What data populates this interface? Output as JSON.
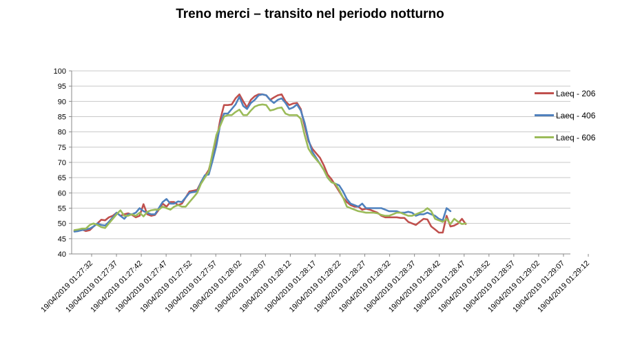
{
  "chart_data": {
    "type": "line",
    "title": "Treno merci – transito nel periodo notturno",
    "xlabel": "",
    "ylabel": "",
    "ylim": [
      40,
      100
    ],
    "yticks": [
      40,
      45,
      50,
      55,
      60,
      65,
      70,
      75,
      80,
      85,
      90,
      95,
      100
    ],
    "grid": true,
    "legend_position": "right",
    "x_labels": [
      "19/04/2019 01:27:32",
      "19/04/2019 01:27:37",
      "19/04/2019 01:27:42",
      "19/04/2019 01:27:47",
      "19/04/2019 01:27:52",
      "19/04/2019 01:27:57",
      "19/04/2019 01:28:02",
      "19/04/2019 01:28:07",
      "19/04/2019 01:28:12",
      "19/04/2019 01:28:17",
      "19/04/2019 01:28:22",
      "19/04/2019 01:28:27",
      "19/04/2019 01:28:32",
      "19/04/2019 01:28:37",
      "19/04/2019 01:28:42",
      "19/04/2019 01:28:47",
      "19/04/2019 01:28:52",
      "19/04/2019 01:28:57",
      "19/04/2019 01:29:02",
      "19/04/2019 01:29:07",
      "19/04/2019 01:29:12"
    ],
    "series": [
      {
        "name": "Laeq - 206",
        "color": "#c0504d",
        "values": [
          47.5,
          47.8,
          48.0,
          47.5,
          47.8,
          49.0,
          50.0,
          51.2,
          51.0,
          52.0,
          52.5,
          53.5,
          52.5,
          53.0,
          53.3,
          52.8,
          52.0,
          52.5,
          56.3,
          53.0,
          52.5,
          52.8,
          54.5,
          56.5,
          55.5,
          57.0,
          57.0,
          56.0,
          56.5,
          58.5,
          60.5,
          60.7,
          61.0,
          63.5,
          65.5,
          67.5,
          72.0,
          77.0,
          84.0,
          88.8,
          88.8,
          89.0,
          91.0,
          92.3,
          90.0,
          88.0,
          90.5,
          91.7,
          92.3,
          92.3,
          92.0,
          90.5,
          91.3,
          92.0,
          92.3,
          90.0,
          88.8,
          89.3,
          89.5,
          87.5,
          82.0,
          77.0,
          74.5,
          73.0,
          71.5,
          69.0,
          66.0,
          64.5,
          62.5,
          60.5,
          58.5,
          57.0,
          56.0,
          55.5,
          55.5,
          54.5,
          54.8,
          54.5,
          54.0,
          53.5,
          52.5,
          52.0,
          52.0,
          52.0,
          52.0,
          51.8,
          51.8,
          50.5,
          50.0,
          49.5,
          50.5,
          51.5,
          51.3,
          49.0,
          48.0,
          47.0,
          47.0,
          52.5,
          49.0,
          49.3,
          50.0,
          51.5,
          49.8
        ]
      },
      {
        "name": "Laeq - 406",
        "color": "#4f81bd",
        "values": [
          47.3,
          47.5,
          47.8,
          48.0,
          48.3,
          49.0,
          50.0,
          49.5,
          49.3,
          50.5,
          52.0,
          53.5,
          52.5,
          51.5,
          53.0,
          53.0,
          53.5,
          55.0,
          54.0,
          53.5,
          53.0,
          53.0,
          55.0,
          57.0,
          58.0,
          56.5,
          56.5,
          57.2,
          57.0,
          58.5,
          60.0,
          60.3,
          60.5,
          63.5,
          65.8,
          66.0,
          70.5,
          75.5,
          82.5,
          86.0,
          86.0,
          87.5,
          89.0,
          91.5,
          88.5,
          87.5,
          89.5,
          90.5,
          92.0,
          92.3,
          92.0,
          90.5,
          89.5,
          90.5,
          91.0,
          89.5,
          87.5,
          88.0,
          89.0,
          87.0,
          83.0,
          77.5,
          73.5,
          71.5,
          69.5,
          67.5,
          65.0,
          63.5,
          63.0,
          62.5,
          60.5,
          58.0,
          56.5,
          56.0,
          55.5,
          56.5,
          55.0,
          55.0,
          55.0,
          55.0,
          55.0,
          54.5,
          54.0,
          54.0,
          54.0,
          53.5,
          53.5,
          53.8,
          53.5,
          52.5,
          53.0,
          53.0,
          53.5,
          53.0,
          52.5,
          51.5,
          51.0,
          55.0,
          54.0
        ]
      },
      {
        "name": "Laeq - 606",
        "color": "#9bbb59",
        "values": [
          47.8,
          48.0,
          48.3,
          48.3,
          49.5,
          50.0,
          49.5,
          48.8,
          48.5,
          50.0,
          51.5,
          53.0,
          54.3,
          52.5,
          52.5,
          53.0,
          52.5,
          53.5,
          52.3,
          53.8,
          54.3,
          54.5,
          54.5,
          55.5,
          55.0,
          54.5,
          55.5,
          56.0,
          55.5,
          55.5,
          57.0,
          58.5,
          60.0,
          63.0,
          65.0,
          67.0,
          73.0,
          79.0,
          82.0,
          85.0,
          85.5,
          85.5,
          86.5,
          87.3,
          85.5,
          85.5,
          87.0,
          88.3,
          88.8,
          89.0,
          88.8,
          87.0,
          87.3,
          87.8,
          88.0,
          86.0,
          85.5,
          85.5,
          85.5,
          84.3,
          79.0,
          74.5,
          72.5,
          71.0,
          69.5,
          67.5,
          65.0,
          63.5,
          63.0,
          61.0,
          58.5,
          55.5,
          55.0,
          54.5,
          54.0,
          53.8,
          53.5,
          53.5,
          53.5,
          53.3,
          52.8,
          52.5,
          52.5,
          53.0,
          53.5,
          53.5,
          53.0,
          52.5,
          52.5,
          53.0,
          53.5,
          54.0,
          55.0,
          54.0,
          51.5,
          51.0,
          50.5,
          51.5,
          49.8,
          51.5,
          50.5,
          49.8,
          50.0
        ]
      }
    ]
  }
}
